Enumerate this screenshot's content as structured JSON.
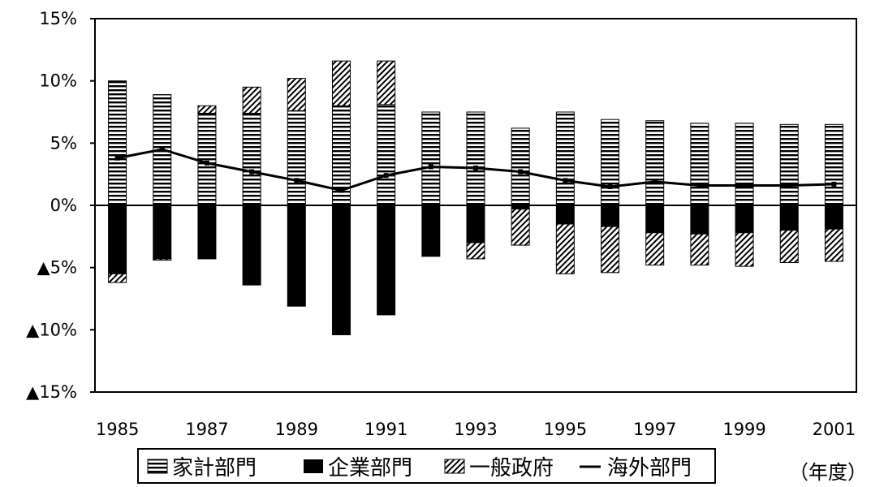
{
  "chart_data": {
    "type": "bar",
    "stacked": true,
    "x": [
      1985,
      1986,
      1987,
      1988,
      1989,
      1990,
      1991,
      1992,
      1993,
      1994,
      1995,
      1996,
      1997,
      1998,
      1999,
      2000,
      2001
    ],
    "x_tick_labels": [
      "1985",
      "1987",
      "1989",
      "1991",
      "1993",
      "1995",
      "1997",
      "1999",
      "2001"
    ],
    "y_ticks": [
      {
        "value": 15,
        "label": "15%"
      },
      {
        "value": 10,
        "label": "10%"
      },
      {
        "value": 5,
        "label": "5%"
      },
      {
        "value": 0,
        "label": "0%"
      },
      {
        "value": -5,
        "label": "▲5%"
      },
      {
        "value": -10,
        "label": "▲10%"
      },
      {
        "value": -15,
        "label": "▲15%"
      }
    ],
    "ylim": [
      -15,
      15
    ],
    "grid": false,
    "x_unit_label": "（年度）",
    "series": [
      {
        "name": "家計部門",
        "kind": "bar",
        "pattern": "horizontal-stripes",
        "values": [
          10.0,
          8.9,
          7.4,
          7.4,
          7.6,
          8.0,
          8.1,
          7.5,
          7.5,
          6.2,
          7.5,
          6.9,
          6.8,
          6.6,
          6.6,
          6.5,
          6.5
        ]
      },
      {
        "name": "企業部門",
        "kind": "bar",
        "pattern": "solid",
        "values": [
          -5.5,
          -4.3,
          -4.3,
          -6.4,
          -8.1,
          -10.4,
          -8.8,
          -4.1,
          -3.0,
          -0.3,
          -1.5,
          -1.7,
          -2.2,
          -2.3,
          -2.2,
          -2.0,
          -1.9
        ]
      },
      {
        "name": "一般政府",
        "kind": "bar",
        "pattern": "diagonal-hatch",
        "values": [
          -0.7,
          -0.1,
          0.6,
          2.1,
          2.6,
          3.6,
          3.5,
          0.0,
          -1.3,
          -2.9,
          -4.0,
          -3.7,
          -2.6,
          -2.5,
          -2.7,
          -2.6,
          -2.6
        ]
      },
      {
        "name": "海外部門",
        "kind": "line",
        "values": [
          3.8,
          4.5,
          3.4,
          2.7,
          2.0,
          1.2,
          2.4,
          3.1,
          3.0,
          2.7,
          2.0,
          1.5,
          1.9,
          1.6,
          1.6,
          1.6,
          1.7
        ]
      }
    ]
  },
  "colors": {
    "ink": "#000000",
    "background": "#ffffff"
  }
}
